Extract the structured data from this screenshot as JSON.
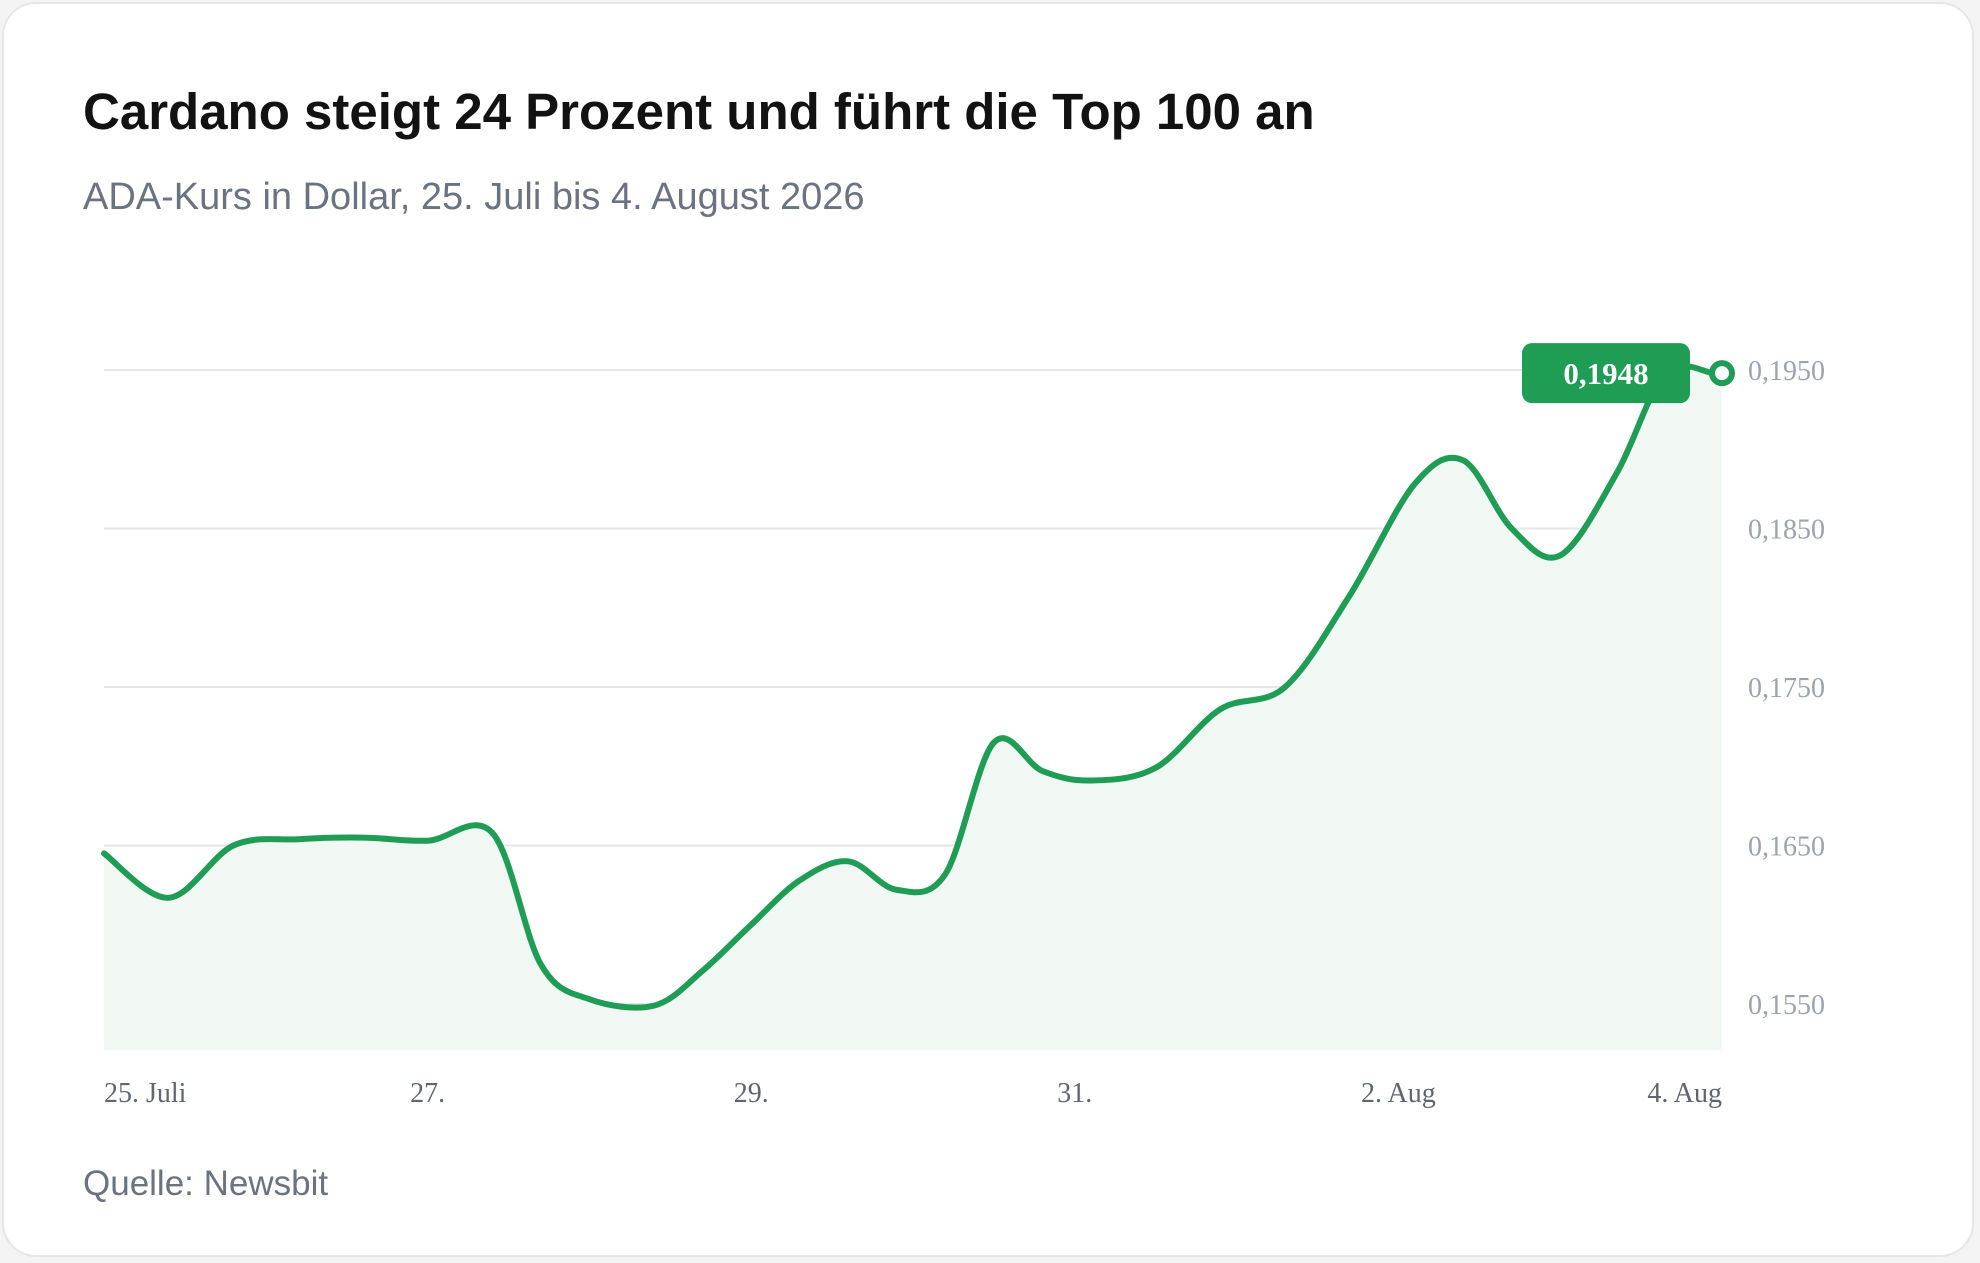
{
  "header": {
    "title": "Cardano steigt 24 Prozent und führt die Top 100 an",
    "subtitle": "ADA-Kurs in Dollar, 25. Juli bis 4. August 2026"
  },
  "footer": {
    "source": "Quelle: Newsbit"
  },
  "colors": {
    "line": "#1f9d55",
    "area_fill": "#f1f7f3",
    "grid": "#e6e6e6"
  },
  "chart_data": {
    "type": "area",
    "title": "Cardano steigt 24 Prozent und führt die Top 100 an",
    "subtitle": "ADA-Kurs in Dollar, 25. Juli bis 4. August 2026",
    "ylim": [
      0.1521,
      0.1971
    ],
    "y_ticks": [
      {
        "value": 0.155,
        "label": "0,1550"
      },
      {
        "value": 0.165,
        "label": "0,1650"
      },
      {
        "value": 0.175,
        "label": "0,1750"
      },
      {
        "value": 0.185,
        "label": "0,1850"
      },
      {
        "value": 0.195,
        "label": "0,1950"
      }
    ],
    "x_ticks": [
      {
        "day": 0,
        "label": "25. Juli"
      },
      {
        "day": 2,
        "label": "27."
      },
      {
        "day": 4,
        "label": "29."
      },
      {
        "day": 6,
        "label": "31."
      },
      {
        "day": 8,
        "label": "2. Aug"
      },
      {
        "day": 10,
        "label": "4. Aug"
      }
    ],
    "grid": true,
    "series": [
      {
        "x": [
          0,
          0.4,
          0.8,
          1.2,
          1.6,
          2.0,
          2.4,
          2.7,
          3.0,
          3.4,
          3.7,
          4.0,
          4.3,
          4.6,
          4.9,
          5.2,
          5.5,
          5.8,
          6.1,
          6.5,
          6.9,
          7.3,
          7.7,
          8.1,
          8.4,
          8.7,
          9.0,
          9.35,
          9.65,
          9.95,
          10.0
        ],
        "y": [
          0.1645,
          0.1617,
          0.165,
          0.1654,
          0.1655,
          0.1653,
          0.1658,
          0.1575,
          0.1553,
          0.1549,
          0.1571,
          0.16,
          0.1628,
          0.164,
          0.1622,
          0.1632,
          0.1715,
          0.1697,
          0.1691,
          0.1699,
          0.1736,
          0.175,
          0.1808,
          0.1878,
          0.1893,
          0.185,
          0.1833,
          0.1885,
          0.1948,
          0.1948,
          0.1948
        ]
      }
    ],
    "last_value_label": "0,1948"
  }
}
